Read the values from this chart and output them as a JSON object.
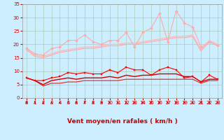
{
  "background_color": "#cceeff",
  "grid_color": "#aaccbb",
  "xlabel": "Vent moyen/en rafales ( km/h )",
  "xlim": [
    -0.5,
    23.5
  ],
  "ylim": [
    0,
    35
  ],
  "yticks": [
    0,
    5,
    10,
    15,
    20,
    25,
    30,
    35
  ],
  "xticks": [
    0,
    1,
    2,
    3,
    4,
    5,
    6,
    7,
    8,
    9,
    10,
    11,
    12,
    13,
    14,
    15,
    16,
    17,
    18,
    19,
    20,
    21,
    22,
    23
  ],
  "series": [
    {
      "y": [
        18.5,
        16.5,
        16.0,
        18.5,
        19.0,
        21.5,
        21.5,
        23.5,
        21.0,
        20.0,
        21.5,
        21.5,
        24.5,
        19.0,
        24.5,
        26.0,
        31.5,
        21.0,
        32.5,
        28.0,
        26.5,
        19.0,
        21.0,
        19.5
      ],
      "color": "#ffaaaa",
      "linewidth": 0.8,
      "marker": "D",
      "markersize": 2.0,
      "zorder": 3
    },
    {
      "y": [
        18.5,
        16.0,
        15.5,
        16.5,
        17.5,
        18.0,
        18.5,
        19.0,
        19.0,
        19.5,
        20.0,
        20.0,
        20.5,
        20.5,
        21.0,
        21.5,
        22.0,
        22.5,
        23.0,
        23.0,
        23.5,
        18.0,
        21.5,
        20.0
      ],
      "color": "#ffbbbb",
      "linewidth": 1.0,
      "marker": null,
      "markersize": 0,
      "zorder": 2
    },
    {
      "y": [
        18.0,
        15.5,
        15.0,
        16.0,
        17.0,
        17.5,
        18.0,
        18.5,
        18.5,
        19.0,
        19.5,
        19.5,
        20.0,
        20.0,
        20.5,
        21.0,
        21.5,
        22.0,
        22.5,
        22.5,
        23.0,
        17.5,
        21.0,
        19.5
      ],
      "color": "#ffaaaa",
      "linewidth": 0.8,
      "marker": null,
      "markersize": 0,
      "zorder": 2
    },
    {
      "y": [
        7.5,
        6.5,
        6.5,
        7.5,
        8.0,
        9.5,
        9.0,
        9.5,
        9.0,
        9.0,
        10.5,
        9.5,
        11.5,
        10.5,
        10.5,
        8.5,
        10.5,
        11.5,
        10.5,
        7.5,
        8.0,
        6.0,
        8.5,
        7.0
      ],
      "color": "#ff0000",
      "linewidth": 0.8,
      "marker": "s",
      "markersize": 2.0,
      "zorder": 4
    },
    {
      "y": [
        7.5,
        6.5,
        5.0,
        6.5,
        7.0,
        7.5,
        7.0,
        7.5,
        7.5,
        7.5,
        8.0,
        7.5,
        8.5,
        8.0,
        8.5,
        8.5,
        9.0,
        9.0,
        9.0,
        8.0,
        8.0,
        6.0,
        7.0,
        7.0
      ],
      "color": "#cc0000",
      "linewidth": 1.0,
      "marker": null,
      "markersize": 0,
      "zorder": 3
    },
    {
      "y": [
        7.5,
        6.5,
        4.5,
        5.5,
        5.5,
        6.0,
        6.0,
        6.5,
        6.5,
        6.5,
        6.5,
        6.5,
        7.0,
        7.0,
        7.0,
        7.0,
        7.0,
        7.0,
        7.0,
        7.0,
        7.0,
        5.5,
        6.5,
        6.5
      ],
      "color": "#dd2222",
      "linewidth": 0.8,
      "marker": null,
      "markersize": 0,
      "zorder": 2
    }
  ],
  "arrow_color": "#cc0000",
  "xlabel_color": "#cc0000",
  "xlabel_fontsize": 6.5,
  "tick_color": "#cc0000",
  "tick_fontsize": 5.0
}
